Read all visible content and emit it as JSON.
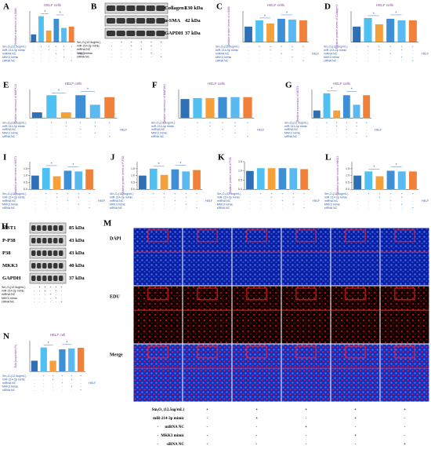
{
  "treatments": {
    "rows": [
      {
        "name": "Sm₂O₃(12.5ug/mL)",
        "signs": [
          "-",
          "+",
          "+",
          "+",
          "+",
          "+"
        ]
      },
      {
        "name": "miR-214-3p mimic",
        "signs": [
          "-",
          "-",
          "+",
          "-",
          "+",
          "-"
        ]
      },
      {
        "name": "miRNA NC",
        "signs": [
          "-",
          "-",
          "-",
          "+",
          "-",
          "-"
        ]
      },
      {
        "name": "MKK3 mimic",
        "signs": [
          "-",
          "-",
          "-",
          "-",
          "+",
          "-"
        ]
      },
      {
        "name": "siRNA NC",
        "signs": [
          "-",
          "-",
          "-",
          "-",
          "-",
          "+"
        ]
      }
    ],
    "cell_line": "HELF"
  },
  "bar_colors": [
    "#2f6fb5",
    "#4fc0f2",
    "#f5a03a",
    "#3f8fd6",
    "#59b9f0",
    "#f0803a"
  ],
  "chart_data": [
    {
      "panel": "A",
      "type": "bar",
      "title": "HELF cells",
      "y_label": "Relative expression of α-SMA",
      "values": [
        0.3,
        1.0,
        0.45,
        0.9,
        0.55,
        0.6
      ],
      "ylim": [
        0,
        1.2
      ],
      "significance": [
        "*",
        "*"
      ]
    },
    {
      "panel": "C",
      "type": "bar",
      "title": "HELF cells",
      "y_label": "Relative protein levels of α-SMA",
      "values": [
        1.0,
        1.4,
        1.2,
        1.5,
        1.45,
        1.4
      ],
      "ylim": [
        0,
        2
      ],
      "significance": [
        "*",
        "*"
      ]
    },
    {
      "panel": "D",
      "type": "bar",
      "title": "HELF cells",
      "y_label": "Relative protein levels of Collagen1",
      "values": [
        1.0,
        1.55,
        1.15,
        1.5,
        1.4,
        1.4
      ],
      "ylim": [
        0,
        2
      ],
      "significance": [
        "*",
        "*"
      ]
    },
    {
      "panel": "E",
      "type": "bar",
      "title": "HELF cells",
      "y_label": "Relative expression of MAPK14",
      "values": [
        0.3,
        1.2,
        0.3,
        1.2,
        0.7,
        1.1
      ],
      "ylim": [
        0,
        1.5
      ],
      "significance": [
        "*",
        "*"
      ]
    },
    {
      "panel": "F",
      "type": "bar",
      "title": "HELF cells",
      "y_label": "Relative expression of MAP2K4",
      "values": [
        1.0,
        1.05,
        1.05,
        1.1,
        1.1,
        1.1
      ],
      "ylim": [
        0,
        1.5
      ]
    },
    {
      "panel": "G",
      "type": "bar",
      "title": "HELF cells",
      "y_label": "Relative expression of MST1",
      "values": [
        0.4,
        1.3,
        0.4,
        1.2,
        0.7,
        1.2
      ],
      "ylim": [
        0,
        1.5
      ],
      "significance": [
        "*",
        "*"
      ]
    },
    {
      "panel": "I",
      "type": "bar",
      "y_label": "Relative protein levels of MST1",
      "values": [
        1.0,
        1.55,
        0.95,
        1.35,
        1.3,
        1.45
      ],
      "ylim": [
        0,
        2
      ],
      "yticks": [
        {
          "value": 0,
          "label": "0.0"
        },
        {
          "value": 0.5,
          "label": "0.5"
        },
        {
          "value": 1,
          "label": "1.0"
        },
        {
          "value": 1.5,
          "label": "1.5"
        }
      ],
      "significance": [
        "*",
        "*"
      ]
    },
    {
      "panel": "J",
      "type": "bar",
      "y_label": "Relative protein levels of P-P38",
      "values": [
        1.0,
        1.5,
        1.05,
        1.45,
        1.3,
        1.4
      ],
      "ylim": [
        0,
        2
      ],
      "yticks": [
        {
          "value": 0,
          "label": "0.0"
        },
        {
          "value": 0.5,
          "label": "0.5"
        },
        {
          "value": 1,
          "label": "1.0"
        },
        {
          "value": 1.5,
          "label": "1.5"
        }
      ],
      "significance": [
        "*",
        "*"
      ]
    },
    {
      "panel": "K",
      "type": "bar",
      "y_label": "Relative protein levels of P38",
      "values": [
        1.0,
        1.15,
        1.15,
        1.15,
        1.15,
        1.1
      ],
      "ylim": [
        0,
        1.5
      ],
      "yticks": [
        {
          "value": 0,
          "label": "0.0"
        },
        {
          "value": 0.5,
          "label": "0.5"
        },
        {
          "value": 1,
          "label": "1.0"
        },
        {
          "value": 1.5,
          "label": "1.5"
        }
      ]
    },
    {
      "panel": "L",
      "type": "bar",
      "y_label": "Relative protein levels of MKK3",
      "values": [
        1.0,
        1.3,
        0.95,
        1.35,
        1.3,
        1.3
      ],
      "ylim": [
        0,
        2
      ],
      "yticks": [
        {
          "value": 0,
          "label": "0.0"
        },
        {
          "value": 0.5,
          "label": "0.5"
        },
        {
          "value": 1,
          "label": "1.0"
        },
        {
          "value": 1.5,
          "label": "1.5"
        }
      ],
      "significance": [
        "*",
        "*"
      ]
    },
    {
      "panel": "N",
      "type": "bar",
      "title": "HELF cell",
      "y_label": "Edu proportion(%)",
      "values": [
        35,
        78,
        35,
        72,
        75,
        77
      ],
      "ylim": [
        0,
        100
      ],
      "significance": [
        "*",
        "*"
      ]
    }
  ],
  "blots": [
    {
      "panel": "B",
      "proteins": [
        {
          "name": "Collagen1",
          "size": "130 kDa"
        },
        {
          "name": "α-SMA",
          "size": "42 kDa"
        },
        {
          "name": "GAPDH",
          "size": "37 kDa"
        }
      ]
    },
    {
      "panel": "H",
      "proteins": [
        {
          "name": "MST1",
          "size": "85 kDa"
        },
        {
          "name": "P-P38",
          "size": "43 kDa"
        },
        {
          "name": "P38",
          "size": "43 kDa"
        },
        {
          "name": "MKK3",
          "size": "40 kDa"
        },
        {
          "name": "GAPDH",
          "size": "37 kDa"
        }
      ]
    }
  ],
  "microscopy": {
    "panel": "M",
    "rows": [
      "DAPI",
      "EDU",
      "Merge"
    ],
    "treatment_rows": [
      {
        "name": "Sm₂O₃ (12.5ug/mL)",
        "signs": [
          "-",
          "+",
          "+",
          "+",
          "+",
          "+"
        ]
      },
      {
        "name": "miR-214-3p mimic",
        "signs": [
          "-",
          "-",
          "+",
          "-",
          "+",
          "-"
        ]
      },
      {
        "name": "miRNA NC",
        "signs": [
          "-",
          "-",
          "-",
          "+",
          "-",
          "-"
        ]
      },
      {
        "name": "MKK3 mimic",
        "signs": [
          "-",
          "-",
          "-",
          "-",
          "+",
          "-"
        ]
      },
      {
        "name": "siRNA NC",
        "signs": [
          "-",
          "-",
          "-",
          "-",
          "-",
          "+"
        ]
      }
    ]
  }
}
